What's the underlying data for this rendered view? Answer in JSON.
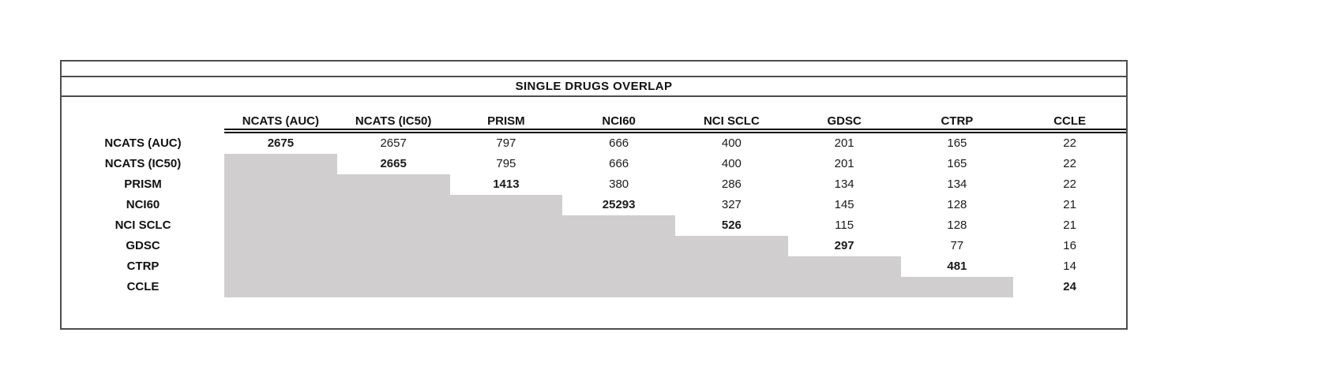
{
  "title": "SINGLE DRUGS OVERLAP",
  "colors": {
    "shaded_cell": "#d0cece",
    "frame_border": "#4d4d4d",
    "header_underline": "#000000",
    "text": "#111111"
  },
  "chart_data": {
    "type": "table",
    "title": "SINGLE DRUGS OVERLAP",
    "columns": [
      "NCATS (AUC)",
      "NCATS (IC50)",
      "PRISM",
      "NCI60",
      "NCI SCLC",
      "GDSC",
      "CTRP",
      "CCLE"
    ],
    "rows": [
      "NCATS (AUC)",
      "NCATS (IC50)",
      "PRISM",
      "NCI60",
      "NCI SCLC",
      "GDSC",
      "CTRP",
      "CCLE"
    ],
    "matrix": [
      [
        2675,
        2657,
        797,
        666,
        400,
        201,
        165,
        22
      ],
      [
        null,
        2665,
        795,
        666,
        400,
        201,
        165,
        22
      ],
      [
        null,
        null,
        1413,
        380,
        286,
        134,
        134,
        22
      ],
      [
        null,
        null,
        null,
        25293,
        327,
        145,
        128,
        21
      ],
      [
        null,
        null,
        null,
        null,
        526,
        115,
        128,
        21
      ],
      [
        null,
        null,
        null,
        null,
        null,
        297,
        77,
        16
      ],
      [
        null,
        null,
        null,
        null,
        null,
        null,
        481,
        14
      ],
      [
        null,
        null,
        null,
        null,
        null,
        null,
        null,
        24
      ]
    ],
    "diagonal_bold": true,
    "shaded_region": "lower-triangle",
    "grid": "off",
    "header_underline_style": "double"
  }
}
